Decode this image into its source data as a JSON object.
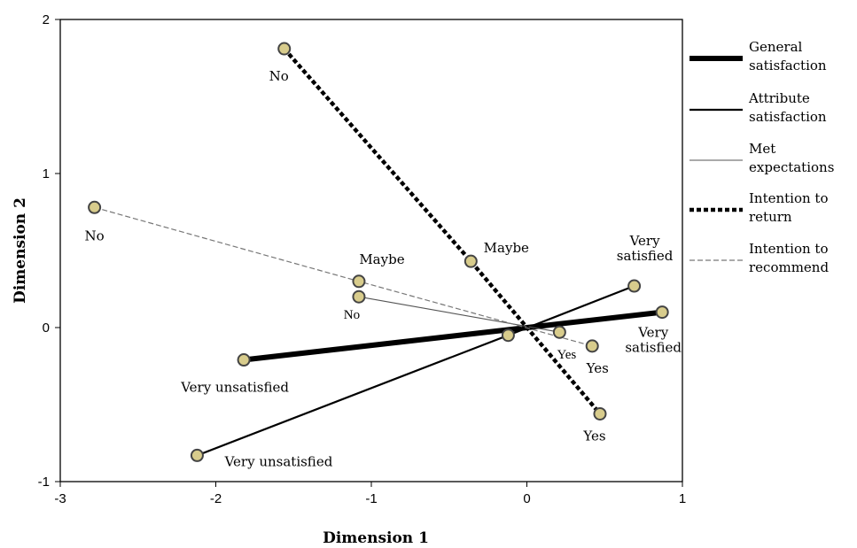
{
  "chart_data": {
    "type": "scatter",
    "title": "",
    "xlabel": "Dimension 1",
    "ylabel": "Dimension 2",
    "xlim": [
      -3,
      1
    ],
    "ylim": [
      -1,
      2
    ],
    "xticks": [
      -3,
      -2,
      -1,
      0,
      1
    ],
    "yticks": [
      -1,
      0,
      1,
      2
    ],
    "grid": false,
    "legend_position": "right",
    "series": [
      {
        "name": "General satisfaction",
        "legend_lines": [
          "General",
          "satisfaction"
        ],
        "line_style": "thick-solid",
        "points": [
          {
            "x": -1.82,
            "y": -0.21,
            "label": "Very unsatisfied"
          },
          {
            "x": 0.87,
            "y": 0.1,
            "label": "Very satisfied"
          }
        ]
      },
      {
        "name": "Attribute satisfaction",
        "legend_lines": [
          "Attribute",
          "satisfaction"
        ],
        "line_style": "solid",
        "points": [
          {
            "x": -2.12,
            "y": -0.83,
            "label": "Very unsatisfied"
          },
          {
            "x": -0.12,
            "y": -0.05,
            "label": ""
          },
          {
            "x": 0.69,
            "y": 0.27,
            "label": "Very satisfied"
          }
        ]
      },
      {
        "name": "Met expectations",
        "legend_lines": [
          "Met",
          "expectations"
        ],
        "line_style": "thin-solid",
        "points": [
          {
            "x": -1.08,
            "y": 0.2,
            "label": "No"
          },
          {
            "x": 0.21,
            "y": -0.03,
            "label": "Yes"
          }
        ]
      },
      {
        "name": "Intention to return",
        "legend_lines": [
          "Intention to",
          "return"
        ],
        "line_style": "thick-dotted",
        "points": [
          {
            "x": -1.56,
            "y": 1.81,
            "label": "No"
          },
          {
            "x": -0.36,
            "y": 0.43,
            "label": "Maybe"
          },
          {
            "x": 0.47,
            "y": -0.56,
            "label": "Yes"
          }
        ]
      },
      {
        "name": "Intention to recommend",
        "legend_lines": [
          "Intention to",
          "recommend"
        ],
        "line_style": "thin-dashed",
        "points": [
          {
            "x": -2.78,
            "y": 0.78,
            "label": "No"
          },
          {
            "x": -1.08,
            "y": 0.3,
            "label": "Maybe"
          },
          {
            "x": 0.42,
            "y": -0.12,
            "label": "Yes"
          }
        ]
      }
    ]
  },
  "colors": {
    "marker_fill": "#d8cc8c",
    "marker_stroke": "#444444",
    "line": "#000000",
    "thin_line": "#555555",
    "dashed_line": "#777777"
  }
}
